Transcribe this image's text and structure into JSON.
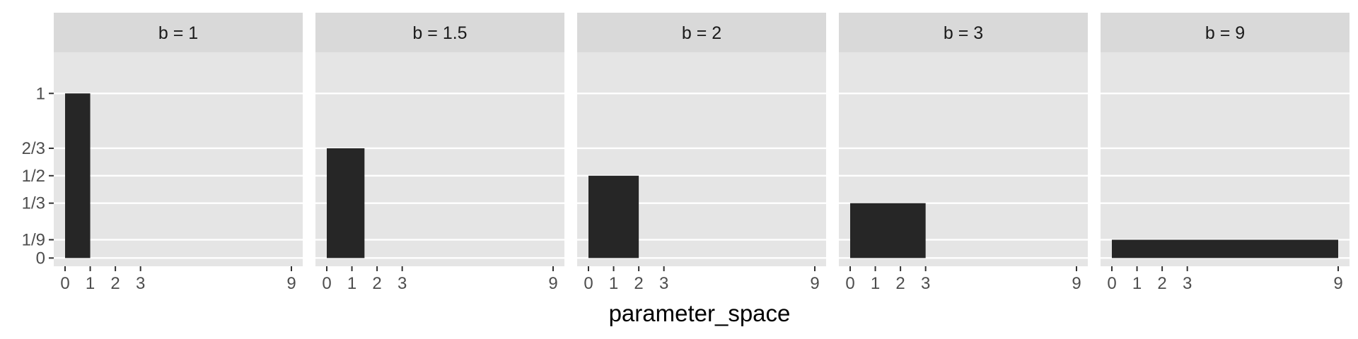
{
  "chart_data": {
    "type": "bar",
    "facet_label_prefix": "b = ",
    "xlabel": "parameter_space",
    "ylabel": "",
    "x_ticks": [
      0,
      1,
      2,
      3,
      9
    ],
    "y_ticks": [
      {
        "value": 0,
        "label": "0"
      },
      {
        "value": 0.1111,
        "label": "1/9"
      },
      {
        "value": 0.3333,
        "label": "1/3"
      },
      {
        "value": 0.5,
        "label": "1/2"
      },
      {
        "value": 0.6667,
        "label": "2/3"
      },
      {
        "value": 1,
        "label": "1"
      }
    ],
    "xlim": [
      -0.45,
      9.45
    ],
    "ylim": [
      -0.05,
      1.25
    ],
    "grid": true,
    "panels": [
      {
        "b": "1",
        "bar": {
          "xmin": 0,
          "xmax": 1,
          "height": 1
        }
      },
      {
        "b": "1.5",
        "bar": {
          "xmin": 0,
          "xmax": 1.5,
          "height": 0.6667
        }
      },
      {
        "b": "2",
        "bar": {
          "xmin": 0,
          "xmax": 2,
          "height": 0.5
        }
      },
      {
        "b": "3",
        "bar": {
          "xmin": 0,
          "xmax": 3,
          "height": 0.3333
        }
      },
      {
        "b": "9",
        "bar": {
          "xmin": 0,
          "xmax": 9,
          "height": 0.1111
        }
      }
    ],
    "colors": {
      "panel_background": "#e5e5e5",
      "strip_background": "#d9d9d9",
      "grid": "#ffffff",
      "bar": "#262626",
      "axis_ticks": "#333333"
    }
  }
}
